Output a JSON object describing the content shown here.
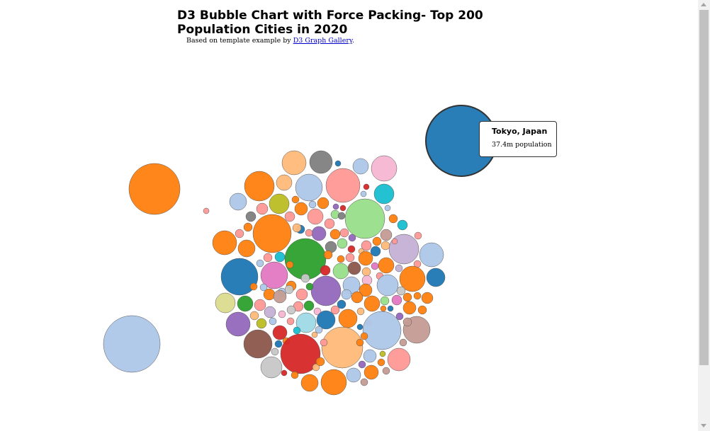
{
  "title": "D3 Bubble Chart with Force Packing- Top 200 Population Cities in 2020",
  "subtitle": {
    "prefix": "Based on template example by ",
    "link_text": "D3 Graph Gallery",
    "suffix": "."
  },
  "tooltip": {
    "name": "Tokyo, Japan",
    "value": "37.4m population"
  },
  "chart_data": {
    "type": "bubble",
    "title": "D3 Bubble Chart with Force Packing- Top 200 Population Cities in 2020",
    "colors": [
      "#1f77b4",
      "#ff7f0e",
      "#aec7e8",
      "#ffbb78",
      "#2ca02c",
      "#98df8a",
      "#d62728",
      "#ff9896",
      "#9467bd",
      "#c5b0d5",
      "#8c564b",
      "#c49c94",
      "#e377c2",
      "#f7b6d2",
      "#7f7f7f",
      "#c7c7c7",
      "#bcbd22",
      "#dbdb8d",
      "#17becf",
      "#9edae5"
    ],
    "highlighted": {
      "city": "Tokyo, Japan",
      "population_millions": 37.4
    }
  }
}
